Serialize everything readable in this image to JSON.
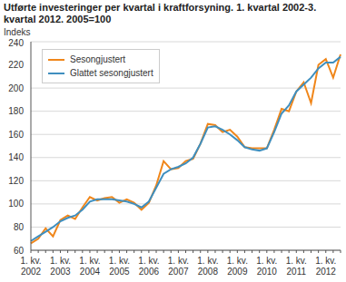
{
  "chart_data": {
    "type": "line",
    "title": "Utførte investeringer per kvartal i kraftforsyning. 1. kvartal 2002-3. kvartal 2012. 2005=100",
    "y_label": "Indeks",
    "categories": [
      "1. kv. 2002",
      null,
      null,
      null,
      "1. kv. 2003",
      null,
      null,
      null,
      "1. kv. 2004",
      null,
      null,
      null,
      "1. kv. 2005",
      null,
      null,
      null,
      "1. kv. 2006",
      null,
      null,
      null,
      "1. kv. 2007",
      null,
      null,
      null,
      "1. kv. 2008",
      null,
      null,
      null,
      "1. kv. 2009",
      null,
      null,
      null,
      "1. kv. 2010",
      null,
      null,
      null,
      "1. kv. 2011",
      null,
      null,
      null,
      "1. kv. 2012",
      null,
      null
    ],
    "series": [
      {
        "name": "Sesongjustert",
        "color": "#f0861a",
        "values": [
          66,
          70,
          79,
          72,
          86,
          90,
          87,
          97,
          106,
          103,
          105,
          106,
          101,
          104,
          101,
          95,
          101,
          116,
          137,
          130,
          131,
          137,
          139,
          152,
          169,
          168,
          162,
          164,
          158,
          149,
          148,
          148,
          148,
          164,
          182,
          180,
          197,
          205,
          187,
          220,
          225,
          209,
          229
        ]
      },
      {
        "name": "Glattet sesongjustert",
        "color": "#3f8fbf",
        "values": [
          68,
          72,
          76,
          80,
          85,
          88,
          90,
          95,
          102,
          104,
          104,
          104,
          103,
          102,
          100,
          97,
          102,
          114,
          126,
          130,
          132,
          135,
          140,
          152,
          166,
          167,
          164,
          160,
          155,
          149,
          147,
          146,
          148,
          162,
          178,
          185,
          197,
          203,
          209,
          217,
          222,
          222,
          227
        ]
      }
    ],
    "ylim": [
      60,
      240
    ],
    "yticks": [
      60,
      80,
      100,
      120,
      140,
      160,
      180,
      200,
      220,
      240
    ],
    "grid": true,
    "legend": "upper left"
  }
}
